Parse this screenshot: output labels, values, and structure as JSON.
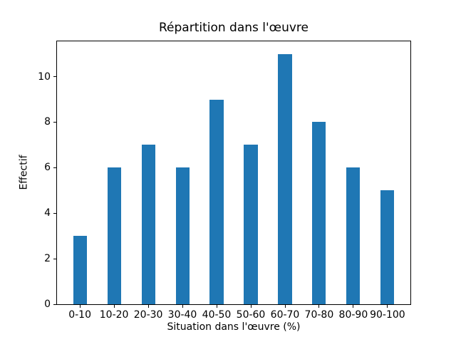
{
  "figure": {
    "background": "#ffffff",
    "text_color": "#000000",
    "spine_color": "#000000"
  },
  "chart_data": {
    "type": "bar",
    "title": "Répartition dans l'œuvre",
    "xlabel": "Situation dans l'œuvre (%)",
    "ylabel": "Effectif",
    "categories": [
      "0-10",
      "10-20",
      "20-30",
      "30-40",
      "40-50",
      "50-60",
      "60-70",
      "70-80",
      "80-90",
      "90-100"
    ],
    "values": [
      3,
      6,
      7,
      6,
      9,
      7,
      11,
      8,
      6,
      5
    ],
    "yticks": [
      0,
      2,
      4,
      6,
      8,
      10
    ],
    "ylim": [
      0,
      11.55
    ],
    "bar_color": "#1f77b4",
    "bar_width_ratio": 0.4,
    "grid": false,
    "legend_position": "none"
  }
}
